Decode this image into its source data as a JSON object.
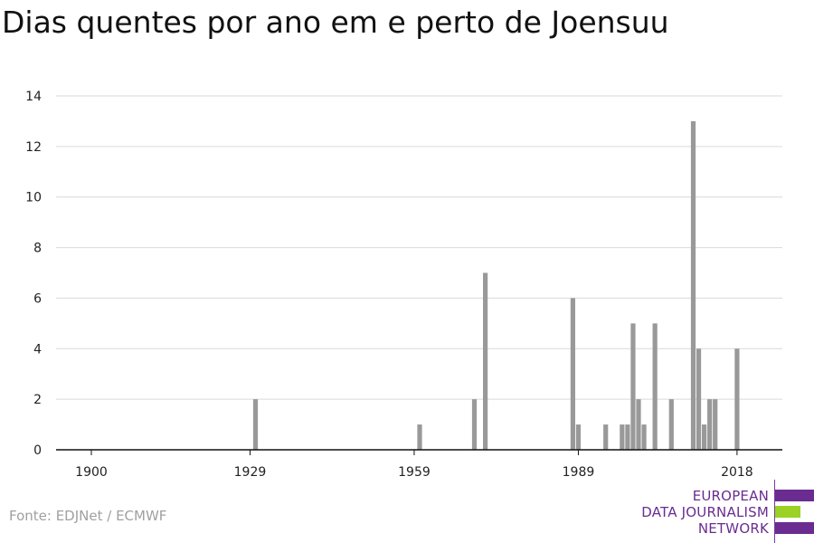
{
  "chart_data": {
    "type": "bar",
    "title": "Dias quentes por ano em e perto de Joensuu",
    "xlabel": "",
    "ylabel": "",
    "ylim": [
      0,
      14
    ],
    "yticks": [
      0,
      2,
      4,
      6,
      8,
      10,
      12,
      14
    ],
    "xlim": [
      1900,
      2018
    ],
    "xticks": [
      1900,
      1929,
      1959,
      1989,
      2018
    ],
    "grid": true,
    "bar_color": "#999999",
    "x": [
      1900,
      1901,
      1902,
      1903,
      1904,
      1905,
      1906,
      1907,
      1908,
      1909,
      1910,
      1911,
      1912,
      1913,
      1914,
      1915,
      1916,
      1917,
      1918,
      1919,
      1920,
      1921,
      1922,
      1923,
      1924,
      1925,
      1926,
      1927,
      1928,
      1929,
      1930,
      1931,
      1932,
      1933,
      1934,
      1935,
      1936,
      1937,
      1938,
      1939,
      1940,
      1941,
      1942,
      1943,
      1944,
      1945,
      1946,
      1947,
      1948,
      1949,
      1950,
      1951,
      1952,
      1953,
      1954,
      1955,
      1956,
      1957,
      1958,
      1959,
      1960,
      1961,
      1962,
      1963,
      1964,
      1965,
      1966,
      1967,
      1968,
      1969,
      1970,
      1971,
      1972,
      1973,
      1974,
      1975,
      1976,
      1977,
      1978,
      1979,
      1980,
      1981,
      1982,
      1983,
      1984,
      1985,
      1986,
      1987,
      1988,
      1989,
      1990,
      1991,
      1992,
      1993,
      1994,
      1995,
      1996,
      1997,
      1998,
      1999,
      2000,
      2001,
      2002,
      2003,
      2004,
      2005,
      2006,
      2007,
      2008,
      2009,
      2010,
      2011,
      2012,
      2013,
      2014,
      2015,
      2016,
      2017,
      2018
    ],
    "values": [
      0,
      0,
      0,
      0,
      0,
      0,
      0,
      0,
      0,
      0,
      0,
      0,
      0,
      0,
      0,
      0,
      0,
      0,
      0,
      0,
      0,
      0,
      0,
      0,
      0,
      0,
      0,
      0,
      0,
      0,
      2,
      0,
      0,
      0,
      0,
      0,
      0,
      0,
      0,
      0,
      0,
      0,
      0,
      0,
      0,
      0,
      0,
      0,
      0,
      0,
      0,
      0,
      0,
      0,
      0,
      0,
      0,
      0,
      0,
      0,
      1,
      0,
      0,
      0,
      0,
      0,
      0,
      0,
      0,
      0,
      2,
      0,
      7,
      0,
      0,
      0,
      0,
      0,
      0,
      0,
      0,
      0,
      0,
      0,
      0,
      0,
      0,
      0,
      6,
      1,
      0,
      0,
      0,
      0,
      1,
      0,
      0,
      1,
      1,
      5,
      2,
      1,
      0,
      5,
      0,
      0,
      2,
      0,
      0,
      0,
      13,
      4,
      1,
      2,
      2,
      0,
      0,
      0,
      4
    ]
  },
  "source": "Fonte: EDJNet / ECMWF",
  "logo": {
    "line1": "EUROPEAN",
    "line2": "DATA JOURNALISM",
    "line3": "NETWORK",
    "colors": {
      "purple": "#6a2c91",
      "green": "#9bd225"
    }
  }
}
